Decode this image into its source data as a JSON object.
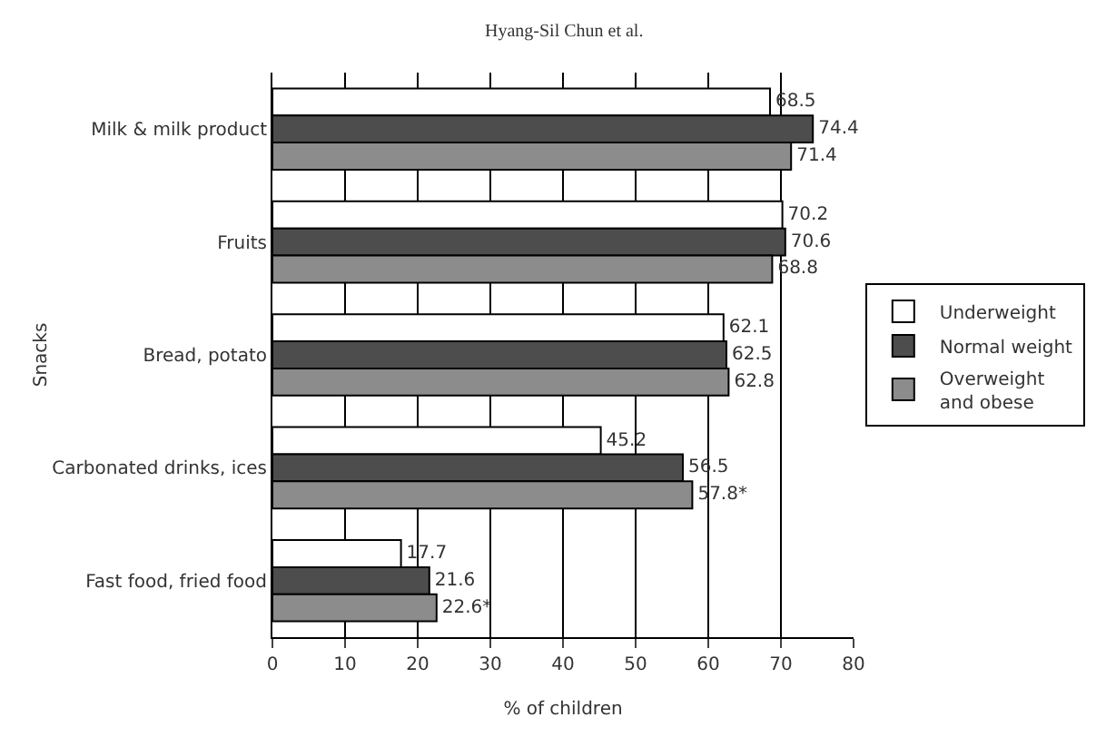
{
  "chart_data": {
    "type": "bar",
    "orientation": "horizontal",
    "annotations": [
      "Hyang-Sil Chun et al."
    ],
    "xlabel": "% of children",
    "ylabel": "Snacks",
    "categories": [
      "Milk & milk product",
      "Fruits",
      "Bread, potato",
      "Carbonated drinks, ices",
      "Fast food, fried food"
    ],
    "series": [
      {
        "name": "Underweight",
        "color": "#ffffff",
        "values": [
          68.5,
          70.2,
          62.1,
          45.2,
          17.7
        ],
        "value_labels": [
          "68.5",
          "70.2",
          "62.1",
          "45.2",
          "17.7"
        ]
      },
      {
        "name": "Normal weight",
        "color": "#4d4d4d",
        "values": [
          74.4,
          70.6,
          62.5,
          56.5,
          21.6
        ],
        "value_labels": [
          "74.4",
          "70.6",
          "62.5",
          "56.5",
          "21.6"
        ]
      },
      {
        "name": "Overweight\nand obese",
        "color": "#8c8c8c",
        "values": [
          71.4,
          68.8,
          62.8,
          57.8,
          22.6
        ],
        "value_labels": [
          "71.4",
          "68.8",
          "62.8",
          "57.8*",
          "22.6*"
        ]
      }
    ],
    "xlim": [
      0,
      80
    ],
    "xticks": [
      0,
      10,
      20,
      30,
      40,
      50,
      60,
      70,
      80
    ],
    "grid": "x",
    "legend": "right"
  }
}
